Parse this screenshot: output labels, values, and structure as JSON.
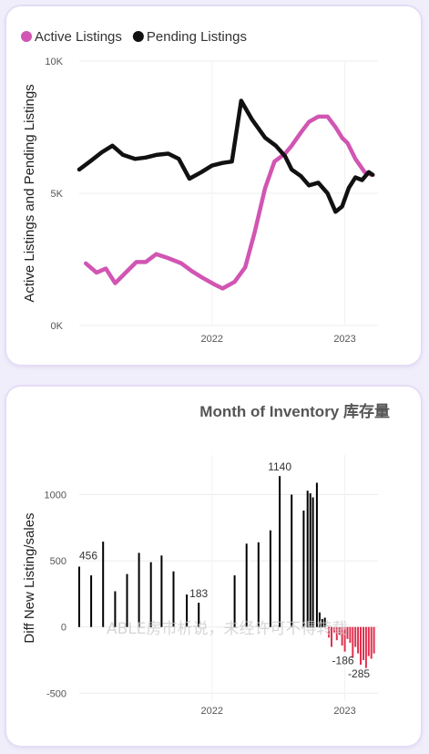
{
  "chart_data": [
    {
      "type": "line",
      "legend_position": "top-left",
      "ylabel": "Active Listings and Pending Listings",
      "ylim": [
        0,
        10000
      ],
      "yticks": [
        {
          "v": 0,
          "label": "0K"
        },
        {
          "v": 5000,
          "label": "5K"
        },
        {
          "v": 10000,
          "label": "10K"
        }
      ],
      "xlim": [
        2021.0,
        2023.25
      ],
      "xticks": [
        {
          "v": 2022.0,
          "label": "2022"
        },
        {
          "v": 2023.0,
          "label": "2023"
        }
      ],
      "grid": true,
      "series": [
        {
          "name": "Active Listings",
          "color": "#d155b2",
          "points": [
            [
              2021.05,
              2350
            ],
            [
              2021.13,
              2000
            ],
            [
              2021.2,
              2150
            ],
            [
              2021.27,
              1600
            ],
            [
              2021.35,
              2000
            ],
            [
              2021.43,
              2400
            ],
            [
              2021.5,
              2400
            ],
            [
              2021.58,
              2700
            ],
            [
              2021.67,
              2550
            ],
            [
              2021.77,
              2350
            ],
            [
              2021.85,
              2050
            ],
            [
              2021.93,
              1800
            ],
            [
              2022.02,
              1550
            ],
            [
              2022.08,
              1400
            ],
            [
              2022.17,
              1650
            ],
            [
              2022.25,
              2200
            ],
            [
              2022.32,
              3500
            ],
            [
              2022.4,
              5200
            ],
            [
              2022.47,
              6200
            ],
            [
              2022.55,
              6500
            ],
            [
              2022.6,
              6800
            ],
            [
              2022.67,
              7300
            ],
            [
              2022.73,
              7700
            ],
            [
              2022.8,
              7900
            ],
            [
              2022.87,
              7900
            ],
            [
              2022.93,
              7500
            ],
            [
              2022.98,
              7100
            ],
            [
              2023.02,
              6900
            ],
            [
              2023.08,
              6300
            ],
            [
              2023.15,
              5800
            ],
            [
              2023.2,
              5700
            ]
          ]
        },
        {
          "name": "Pending Listings",
          "color": "#111111",
          "points": [
            [
              2021.0,
              5900
            ],
            [
              2021.08,
              6200
            ],
            [
              2021.17,
              6550
            ],
            [
              2021.25,
              6800
            ],
            [
              2021.33,
              6450
            ],
            [
              2021.42,
              6300
            ],
            [
              2021.5,
              6350
            ],
            [
              2021.58,
              6450
            ],
            [
              2021.67,
              6500
            ],
            [
              2021.75,
              6300
            ],
            [
              2021.83,
              5550
            ],
            [
              2021.92,
              5800
            ],
            [
              2022.0,
              6050
            ],
            [
              2022.08,
              6150
            ],
            [
              2022.15,
              6200
            ],
            [
              2022.22,
              8500
            ],
            [
              2022.3,
              7800
            ],
            [
              2022.4,
              7100
            ],
            [
              2022.48,
              6800
            ],
            [
              2022.55,
              6400
            ],
            [
              2022.6,
              5900
            ],
            [
              2022.67,
              5650
            ],
            [
              2022.73,
              5300
            ],
            [
              2022.8,
              5400
            ],
            [
              2022.87,
              5000
            ],
            [
              2022.93,
              4300
            ],
            [
              2022.98,
              4500
            ],
            [
              2023.03,
              5200
            ],
            [
              2023.08,
              5600
            ],
            [
              2023.13,
              5500
            ],
            [
              2023.18,
              5800
            ],
            [
              2023.21,
              5700
            ]
          ]
        }
      ]
    },
    {
      "type": "bar",
      "title": "Month of Inventory 库存量",
      "ylabel": "Diff New Listing/sales",
      "ylim": [
        -560,
        1300
      ],
      "yticks": [
        {
          "v": -500,
          "label": "-500"
        },
        {
          "v": 0,
          "label": "0"
        },
        {
          "v": 500,
          "label": "500"
        },
        {
          "v": 1000,
          "label": "1000"
        }
      ],
      "xlim": [
        2021.0,
        2023.25
      ],
      "xticks": [
        {
          "v": 2022.0,
          "label": "2022"
        },
        {
          "v": 2023.0,
          "label": "2023"
        }
      ],
      "grid": true,
      "positive_color": "#000000",
      "negative_color": "#e0314f",
      "bars": [
        [
          2021.0,
          456
        ],
        [
          2021.09,
          390
        ],
        [
          2021.18,
          645
        ],
        [
          2021.27,
          270
        ],
        [
          2021.36,
          400
        ],
        [
          2021.45,
          560
        ],
        [
          2021.54,
          490
        ],
        [
          2021.62,
          540
        ],
        [
          2021.71,
          420
        ],
        [
          2021.81,
          245
        ],
        [
          2021.9,
          183
        ],
        [
          2022.17,
          390
        ],
        [
          2022.26,
          630
        ],
        [
          2022.35,
          640
        ],
        [
          2022.44,
          730
        ],
        [
          2022.51,
          1140
        ],
        [
          2022.6,
          1000
        ],
        [
          2022.69,
          880
        ],
        [
          2022.72,
          1030
        ],
        [
          2022.74,
          1010
        ],
        [
          2022.76,
          980
        ],
        [
          2022.79,
          1090
        ],
        [
          2022.81,
          110
        ],
        [
          2022.83,
          60
        ],
        [
          2022.85,
          70
        ],
        [
          2022.88,
          -80
        ],
        [
          2022.9,
          -150
        ],
        [
          2022.92,
          -40
        ],
        [
          2022.94,
          -100
        ],
        [
          2022.96,
          -60
        ],
        [
          2022.98,
          -140
        ],
        [
          2023.0,
          -186
        ],
        [
          2023.02,
          -90
        ],
        [
          2023.04,
          -120
        ],
        [
          2023.06,
          -230
        ],
        [
          2023.08,
          -150
        ],
        [
          2023.1,
          -200
        ],
        [
          2023.12,
          -285
        ],
        [
          2023.14,
          -250
        ],
        [
          2023.16,
          -310
        ],
        [
          2023.18,
          -220
        ],
        [
          2023.2,
          -240
        ],
        [
          2023.22,
          -200
        ]
      ],
      "data_labels": [
        {
          "x": 2021.0,
          "v": 456,
          "text": "456",
          "pos": "above-right"
        },
        {
          "x": 2021.9,
          "v": 183,
          "text": "183",
          "pos": "above"
        },
        {
          "x": 2022.51,
          "v": 1140,
          "text": "1140",
          "pos": "above"
        },
        {
          "x": 2023.0,
          "v": -186,
          "text": "-186",
          "pos": "below"
        },
        {
          "x": 2023.12,
          "v": -285,
          "text": "-285",
          "pos": "below"
        }
      ],
      "watermark": "ABLE房市析说，未经许可不得转载"
    }
  ]
}
